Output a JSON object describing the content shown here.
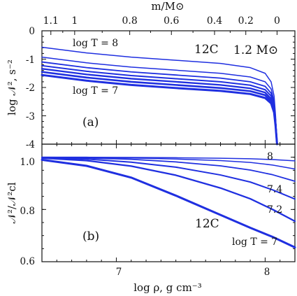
{
  "figure": {
    "top_axis_title": "m/M⊙",
    "x_axis_title": "log ρ, g cm⁻³"
  },
  "chart_data": [
    {
      "id": "a",
      "type": "line",
      "panel_label": "(a)",
      "ylabel": "log 𝒩², s⁻²",
      "xlim": [
        6.5,
        8.2
      ],
      "ylim": [
        -4,
        0
      ],
      "yticks": [
        0,
        -1,
        -2,
        -3,
        -4
      ],
      "ytick_labels": [
        "0",
        "-1",
        "-2",
        "-3",
        "-4"
      ],
      "top_axis": {
        "label": "m/M⊙",
        "ticks": [
          {
            "label": "1.1",
            "log_rho": 6.56
          },
          {
            "label": "1",
            "log_rho": 6.72
          },
          {
            "label": "0.8",
            "log_rho": 7.09
          },
          {
            "label": "0.6",
            "log_rho": 7.37
          },
          {
            "label": "0.4",
            "log_rho": 7.66
          },
          {
            "label": "0.2",
            "log_rho": 7.87
          },
          {
            "label": "0",
            "log_rho": 8.08
          }
        ]
      },
      "annotations": {
        "species": "12C",
        "mass": "1.2 M⊙",
        "top_curve_label": "log T = 8",
        "bottom_curve_label": "log T = 7"
      },
      "series": [
        {
          "name": "log T = 8",
          "width": 1.5,
          "x": [
            6.5,
            6.8,
            7.1,
            7.4,
            7.7,
            7.9,
            8.0,
            8.04,
            8.06,
            8.07,
            8.08
          ],
          "y": [
            -0.58,
            -0.78,
            -0.93,
            -1.04,
            -1.15,
            -1.3,
            -1.5,
            -1.8,
            -2.3,
            -3.0,
            -4.0
          ]
        },
        {
          "name": "",
          "width": 1.5,
          "x": [
            6.5,
            6.8,
            7.1,
            7.4,
            7.7,
            7.9,
            8.0,
            8.04,
            8.06,
            8.07,
            8.08
          ],
          "y": [
            -0.93,
            -1.13,
            -1.28,
            -1.39,
            -1.5,
            -1.63,
            -1.8,
            -2.05,
            -2.5,
            -3.1,
            -4.0
          ]
        },
        {
          "name": "",
          "width": 1.8,
          "x": [
            6.5,
            6.8,
            7.1,
            7.4,
            7.7,
            7.9,
            8.0,
            8.04,
            8.06,
            8.07,
            8.08
          ],
          "y": [
            -1.1,
            -1.3,
            -1.45,
            -1.56,
            -1.67,
            -1.8,
            -1.96,
            -2.2,
            -2.6,
            -3.15,
            -4.0
          ]
        },
        {
          "name": "",
          "width": 2.0,
          "x": [
            6.5,
            6.8,
            7.1,
            7.4,
            7.7,
            7.9,
            8.0,
            8.04,
            8.06,
            8.07,
            8.08
          ],
          "y": [
            -1.23,
            -1.43,
            -1.58,
            -1.69,
            -1.8,
            -1.92,
            -2.08,
            -2.3,
            -2.68,
            -3.2,
            -4.0
          ]
        },
        {
          "name": "",
          "width": 2.3,
          "x": [
            6.5,
            6.8,
            7.1,
            7.4,
            7.7,
            7.9,
            8.0,
            8.04,
            8.06,
            8.07,
            8.08
          ],
          "y": [
            -1.34,
            -1.54,
            -1.69,
            -1.8,
            -1.91,
            -2.03,
            -2.18,
            -2.4,
            -2.75,
            -3.25,
            -4.0
          ]
        },
        {
          "name": "",
          "width": 2.6,
          "x": [
            6.5,
            6.8,
            7.1,
            7.4,
            7.7,
            7.9,
            8.0,
            8.04,
            8.06,
            8.07,
            8.08
          ],
          "y": [
            -1.45,
            -1.65,
            -1.8,
            -1.91,
            -2.02,
            -2.13,
            -2.27,
            -2.48,
            -2.82,
            -3.3,
            -4.0
          ]
        },
        {
          "name": "log T = 7",
          "width": 3.0,
          "x": [
            6.5,
            6.8,
            7.1,
            7.4,
            7.7,
            7.9,
            8.0,
            8.04,
            8.06,
            8.07,
            8.08
          ],
          "y": [
            -1.56,
            -1.76,
            -1.91,
            -2.02,
            -2.12,
            -2.23,
            -2.37,
            -2.56,
            -2.88,
            -3.35,
            -4.0
          ]
        }
      ]
    },
    {
      "id": "b",
      "type": "line",
      "panel_label": "(b)",
      "ylabel": "𝒩²/𝒩²cl",
      "xlabel": "log ρ, g cm⁻³",
      "xlim": [
        6.5,
        8.2
      ],
      "ylim": [
        0.6,
        1.05
      ],
      "xticks": [
        7,
        8
      ],
      "xtick_labels": [
        "7",
        "8"
      ],
      "yticks": [
        0.6,
        0.8,
        1.0
      ],
      "ytick_labels": [
        "0.6",
        "0.8",
        "1.0"
      ],
      "annotations": {
        "species": "12C",
        "curve_labels": [
          "8",
          "7.4",
          "7.2",
          "log T = 7"
        ]
      },
      "series": [
        {
          "name": "8",
          "width": 1.5,
          "x": [
            6.5,
            6.8,
            7.1,
            7.4,
            7.7,
            7.9,
            8.05,
            8.2
          ],
          "y": [
            1.0,
            1.0,
            0.999,
            0.998,
            0.996,
            0.994,
            0.991,
            0.986
          ]
        },
        {
          "name": "",
          "width": 1.5,
          "x": [
            6.5,
            6.8,
            7.1,
            7.4,
            7.7,
            7.9,
            8.05,
            8.2
          ],
          "y": [
            1.0,
            0.999,
            0.997,
            0.993,
            0.987,
            0.98,
            0.97,
            0.955
          ]
        },
        {
          "name": "",
          "width": 1.8,
          "x": [
            6.5,
            6.8,
            7.1,
            7.4,
            7.7,
            7.9,
            8.05,
            8.2
          ],
          "y": [
            0.999,
            0.997,
            0.992,
            0.982,
            0.967,
            0.951,
            0.933,
            0.908
          ]
        },
        {
          "name": "7.4",
          "width": 2.0,
          "x": [
            6.5,
            6.8,
            7.1,
            7.4,
            7.7,
            7.9,
            8.05,
            8.2
          ],
          "y": [
            0.998,
            0.993,
            0.981,
            0.962,
            0.932,
            0.905,
            0.875,
            0.84
          ]
        },
        {
          "name": "7.2",
          "width": 2.3,
          "x": [
            6.5,
            6.8,
            7.1,
            7.4,
            7.7,
            7.9,
            8.05,
            8.2
          ],
          "y": [
            0.997,
            0.987,
            0.966,
            0.931,
            0.882,
            0.841,
            0.8,
            0.755
          ]
        },
        {
          "name": "log T = 7",
          "width": 3.0,
          "x": [
            6.5,
            6.8,
            7.1,
            7.4,
            7.7,
            7.9,
            8.05,
            8.2
          ],
          "y": [
            0.99,
            0.967,
            0.922,
            0.853,
            0.779,
            0.73,
            0.695,
            0.655
          ]
        }
      ]
    }
  ]
}
